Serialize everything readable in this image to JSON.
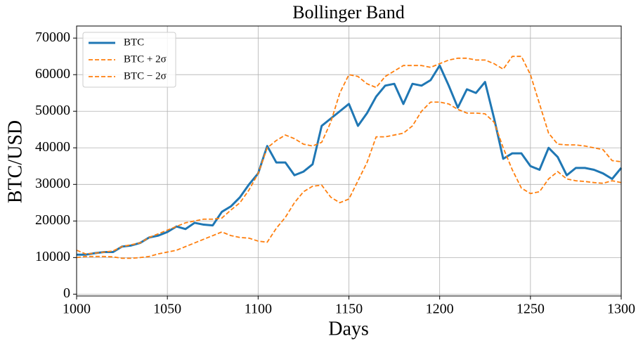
{
  "chart_data": {
    "type": "line",
    "title": "Bollinger Band",
    "xlabel": "Days",
    "ylabel": "BTC/USD",
    "x": [
      1000,
      1005,
      1010,
      1015,
      1020,
      1025,
      1030,
      1035,
      1040,
      1045,
      1050,
      1055,
      1060,
      1065,
      1070,
      1075,
      1080,
      1085,
      1090,
      1095,
      1100,
      1105,
      1110,
      1115,
      1120,
      1125,
      1130,
      1135,
      1140,
      1145,
      1150,
      1155,
      1160,
      1165,
      1170,
      1175,
      1180,
      1185,
      1190,
      1195,
      1200,
      1205,
      1210,
      1215,
      1220,
      1225,
      1230,
      1235,
      1240,
      1245,
      1250,
      1255,
      1260,
      1265,
      1270,
      1275,
      1280,
      1285,
      1290,
      1295,
      1300
    ],
    "series": [
      {
        "name": "BTC",
        "color": "#1f77b4",
        "dashed": false,
        "values": [
          10800,
          10800,
          11200,
          11500,
          11500,
          13000,
          13300,
          14000,
          15500,
          16000,
          17000,
          18500,
          17800,
          19500,
          19000,
          18800,
          22500,
          24000,
          26500,
          30000,
          33000,
          40500,
          36000,
          36000,
          32500,
          33500,
          35500,
          46000,
          48000,
          50000,
          52000,
          46000,
          49500,
          54000,
          57000,
          57500,
          52000,
          57500,
          57000,
          58500,
          62500,
          57000,
          51000,
          56000,
          55000,
          58000,
          48000,
          37000,
          38500,
          38500,
          35000,
          34000,
          40000,
          37500,
          32500,
          34500,
          34500,
          34000,
          33000,
          31500,
          34500
        ]
      },
      {
        "name": "BTC + 2σ",
        "color": "#ff7f0e",
        "dashed": true,
        "values": [
          12000,
          11000,
          11200,
          11500,
          11800,
          13000,
          13500,
          14000,
          15500,
          16500,
          17500,
          18500,
          19500,
          20000,
          20500,
          20500,
          20800,
          23000,
          25000,
          28500,
          33000,
          40000,
          42000,
          43500,
          42500,
          41000,
          40500,
          41500,
          47000,
          55000,
          60000,
          59500,
          57500,
          56500,
          59500,
          61000,
          62500,
          62500,
          62500,
          62000,
          63000,
          64000,
          64500,
          64500,
          64000,
          64000,
          63000,
          61500,
          65000,
          65000,
          60000,
          52000,
          44000,
          41000,
          40800,
          40800,
          40500,
          40000,
          39500,
          36500,
          36200
        ]
      },
      {
        "name": "BTC − 2σ",
        "color": "#ff7f0e",
        "dashed": true,
        "values": [
          10000,
          10300,
          10300,
          10300,
          10200,
          9800,
          9800,
          10000,
          10300,
          11000,
          11500,
          12000,
          13000,
          14000,
          15000,
          16000,
          17000,
          16000,
          15500,
          15300,
          14500,
          14200,
          18000,
          21000,
          25000,
          28000,
          29500,
          29800,
          26500,
          25000,
          26000,
          31000,
          36000,
          43000,
          43000,
          43500,
          44000,
          46000,
          50000,
          52500,
          52500,
          52000,
          50500,
          49500,
          49500,
          49300,
          47000,
          40000,
          34000,
          29000,
          27500,
          28000,
          31500,
          33500,
          31500,
          31000,
          30800,
          30500,
          30300,
          31000,
          30500
        ]
      }
    ],
    "xlim": [
      1000,
      1300
    ],
    "xticks": [
      1000,
      1050,
      1100,
      1150,
      1200,
      1250,
      1300
    ],
    "ylim": [
      -500,
      73300
    ],
    "yticks": [
      0,
      10000,
      20000,
      30000,
      40000,
      50000,
      60000,
      70000
    ],
    "grid": true,
    "legend": "upper left"
  }
}
